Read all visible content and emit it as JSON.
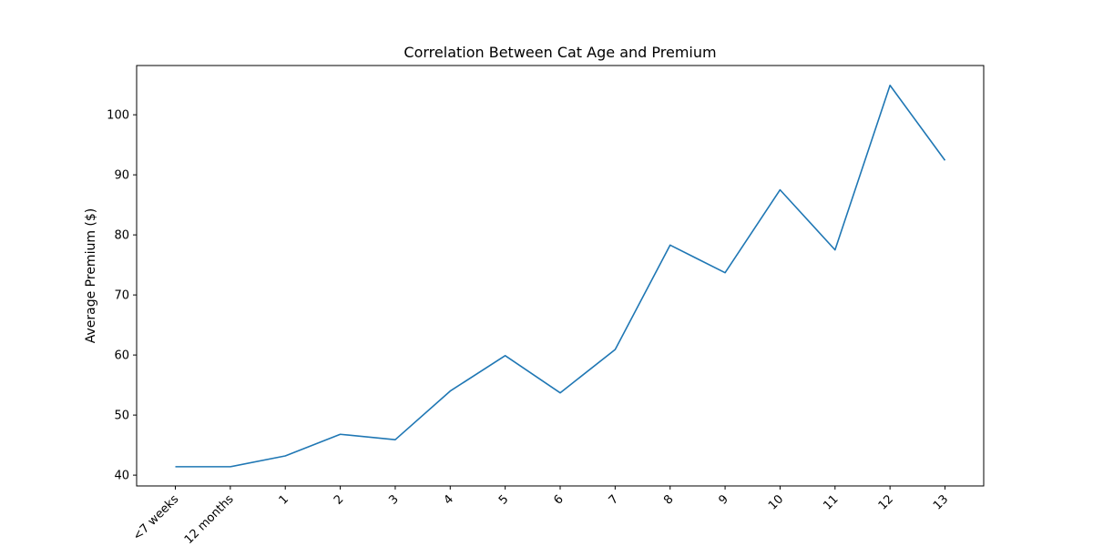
{
  "chart_data": {
    "type": "line",
    "title": "Correlation Between Cat Age and Premium",
    "xlabel": "",
    "ylabel": "Average Premium ($)",
    "categories": [
      "<7 weeks",
      "12 months",
      "1",
      "2",
      "3",
      "4",
      "5",
      "6",
      "7",
      "8",
      "9",
      "10",
      "11",
      "12",
      "13"
    ],
    "series": [
      {
        "values": [
          41.4,
          41.4,
          43.2,
          46.8,
          45.9,
          54.0,
          59.9,
          53.7,
          60.9,
          78.3,
          73.7,
          87.5,
          77.5,
          104.9,
          92.4
        ]
      }
    ],
    "ylim": [
      38.2,
      108.2
    ],
    "yticks": [
      40,
      50,
      60,
      70,
      80,
      90,
      100
    ],
    "grid": false,
    "legend": false
  },
  "colors": {
    "line": "#1f77b4",
    "axes": "#000000",
    "background": "#ffffff"
  }
}
